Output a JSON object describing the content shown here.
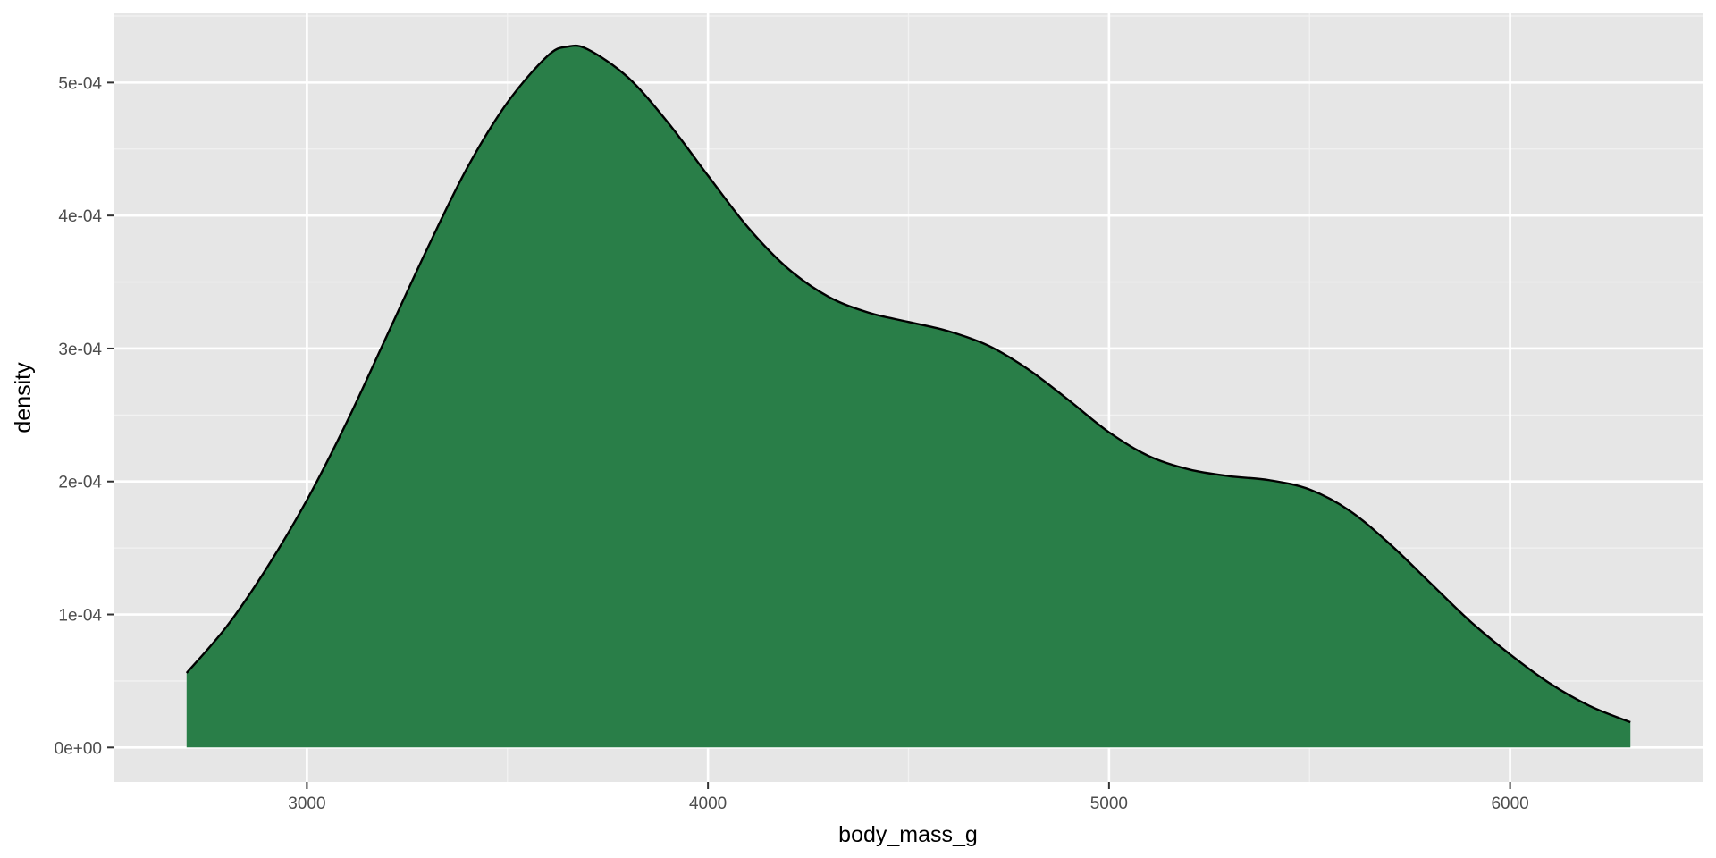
{
  "chart_data": {
    "type": "area",
    "title": "",
    "xlabel": "body_mass_g",
    "ylabel": "density",
    "xlim": [
      2520,
      6480
    ],
    "ylim": [
      -2.6e-05,
      0.000552
    ],
    "x_ticks": [
      3000,
      4000,
      5000,
      6000
    ],
    "x_tick_labels": [
      "3000",
      "4000",
      "5000",
      "6000"
    ],
    "y_ticks": [
      0,
      0.0001,
      0.0002,
      0.0003,
      0.0004,
      0.0005
    ],
    "y_tick_labels": [
      "0e+00",
      "1e-04",
      "2e-04",
      "3e-04",
      "4e-04",
      "5e-04"
    ],
    "grid": true,
    "legend": "none",
    "colors": {
      "fill": "#297e48",
      "outline": "#000000",
      "panel": "#e6e6e6",
      "grid_major": "#ffffff",
      "grid_minor": "#f2f2f2"
    },
    "series": [
      {
        "x": [
          2700,
          2800,
          2900,
          3000,
          3100,
          3200,
          3300,
          3400,
          3500,
          3600,
          3650,
          3700,
          3800,
          3900,
          4000,
          4100,
          4200,
          4300,
          4400,
          4500,
          4600,
          4700,
          4800,
          4900,
          5000,
          5100,
          5200,
          5300,
          5400,
          5500,
          5600,
          5700,
          5800,
          5900,
          6000,
          6100,
          6200,
          6300
        ],
        "y": [
          5.6e-05,
          9.1e-05,
          0.000135,
          0.000186,
          0.000245,
          0.00031,
          0.000375,
          0.000436,
          0.000485,
          0.00052,
          0.000527,
          0.000525,
          0.000504,
          0.00047,
          0.00043,
          0.000391,
          0.00036,
          0.000339,
          0.000327,
          0.00032,
          0.000313,
          0.000302,
          0.000284,
          0.000261,
          0.000237,
          0.000219,
          0.000209,
          0.000204,
          0.000201,
          0.000194,
          0.000178,
          0.000153,
          0.000124,
          9.5e-05,
          7e-05,
          4.8e-05,
          3.1e-05,
          1.9e-05
        ]
      }
    ]
  }
}
